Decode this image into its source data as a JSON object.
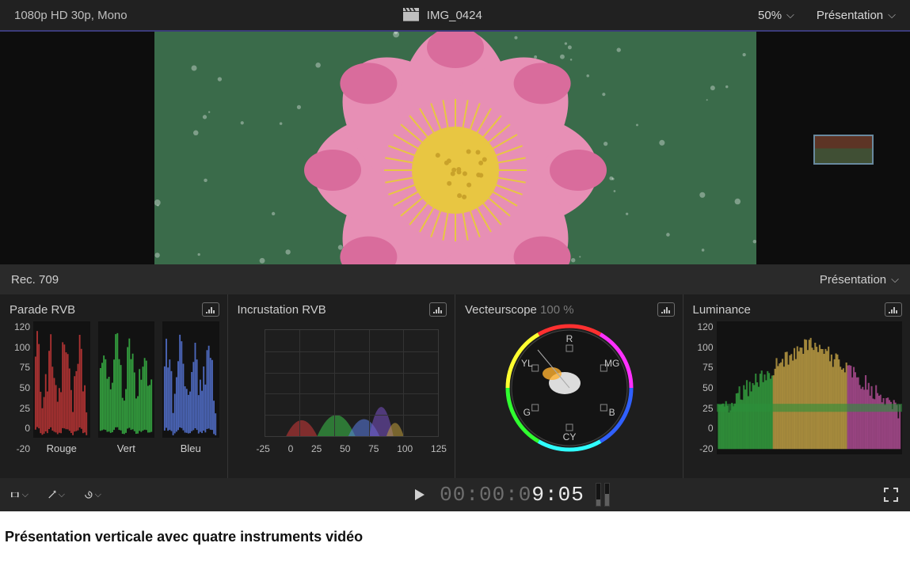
{
  "top_bar": {
    "format_info": "1080p HD 30p, Mono",
    "clip_name": "IMG_0424",
    "zoom_label": "50%",
    "presentation_label": "Présentation"
  },
  "scopes_header": {
    "colorspace": "Rec. 709",
    "presentation_label": "Présentation"
  },
  "scope_icon_color": "#bfbfbf",
  "parade": {
    "title": "Parade RVB",
    "y_ticks": [
      "120",
      "100",
      "75",
      "50",
      "25",
      "0",
      "-20"
    ],
    "lanes": [
      {
        "label": "Rouge",
        "color": "#d23a3a"
      },
      {
        "label": "Vert",
        "color": "#3cc24a"
      },
      {
        "label": "Bleu",
        "color": "#5b7de6"
      }
    ]
  },
  "overlay": {
    "title": "Incrustation RVB",
    "x_ticks": [
      "-25",
      "0",
      "25",
      "50",
      "75",
      "100",
      "125"
    ],
    "humps": [
      {
        "x": 0.12,
        "w": 0.18,
        "h": 0.3,
        "color": "#d23a3a"
      },
      {
        "x": 0.3,
        "w": 0.22,
        "h": 0.4,
        "color": "#3cc24a"
      },
      {
        "x": 0.48,
        "w": 0.18,
        "h": 0.32,
        "color": "#5b7de6"
      },
      {
        "x": 0.6,
        "w": 0.14,
        "h": 0.55,
        "color": "#7a52c7"
      },
      {
        "x": 0.7,
        "w": 0.1,
        "h": 0.25,
        "color": "#c2a03c"
      }
    ]
  },
  "vectorscope": {
    "title": "Vecteurscope",
    "percent": "100 %",
    "labels": {
      "r": "R",
      "mg": "MG",
      "b": "B",
      "cy": "CY",
      "g": "G",
      "yl": "YL"
    }
  },
  "luminance": {
    "title": "Luminance",
    "y_ticks": [
      "120",
      "100",
      "75",
      "50",
      "25",
      "0",
      "-20"
    ]
  },
  "transport": {
    "timecode_dim": "00:00:0",
    "timecode_bright": "9:05",
    "meters": [
      30,
      55
    ]
  },
  "caption": "Présentation verticale avec quatre instruments vidéo",
  "viewer": {
    "leaf_bg": "#3a6b4a",
    "petal_color": "#e78fb5",
    "petal_tip": "#d96c9c",
    "center_color": "#e8c642",
    "center_dot": "#c9a22a"
  }
}
